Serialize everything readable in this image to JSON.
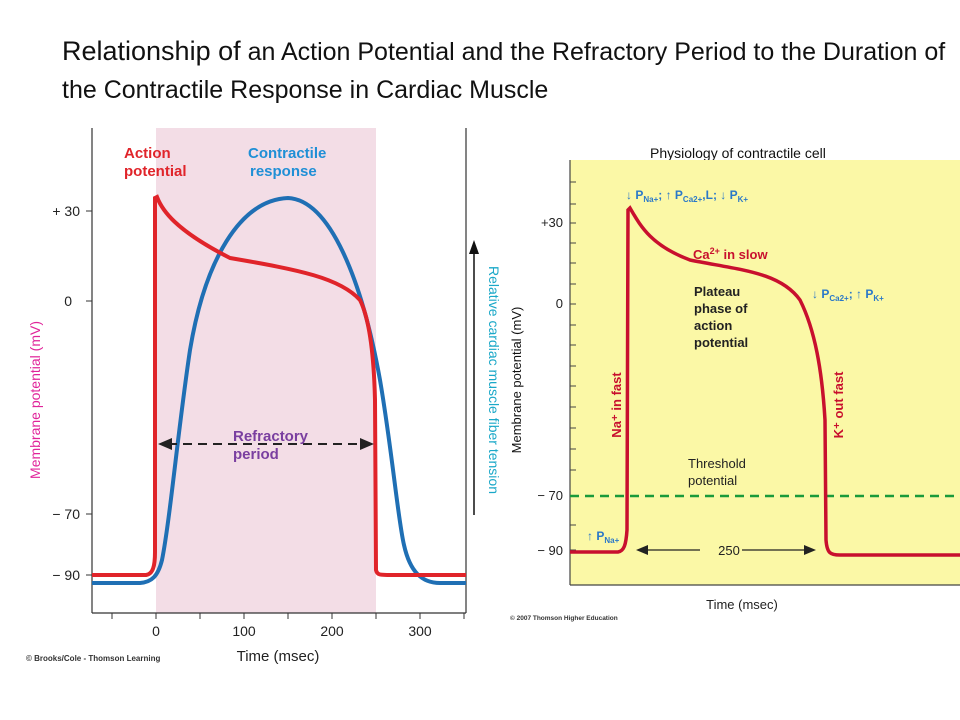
{
  "title": {
    "lead": "Relationship of",
    "rest": " an Action Potential and the Refractory Period to the Duration of the Contractile Response in Cardiac Muscle"
  },
  "left_figure": {
    "action_potential_label": [
      "Action",
      "potential"
    ],
    "contractile_label": [
      "Contractile",
      "response"
    ],
    "refractory_label": [
      "Refractory",
      "period"
    ],
    "y_axis_label": "Membrane potential (mV)",
    "right_axis_label": "Relative cardiac muscle fiber tension",
    "y_ticks": [
      "+ 30",
      "0",
      "− 70",
      "− 90"
    ],
    "x_ticks": [
      "0",
      "100",
      "200",
      "300"
    ],
    "x_axis_label": "Time (msec)",
    "credit": "© Brooks/Cole - Thomson Learning",
    "colors": {
      "action": "#e0242a",
      "contractile": "#1f6fb4",
      "shading": "#f3dde6",
      "labels_red": "#e0242a",
      "labels_blue": "#1f8fd6",
      "refractory": "#7a3fa0",
      "axis_pink": "#e0249a",
      "axis_cyan": "#1aa8c8"
    }
  },
  "right_figure": {
    "heading": "Physiology of contractile cell",
    "top_note": "↓ P",
    "na_sub": "Na+",
    "ca_p": "; ↑ P",
    "ca_sub": "Ca2+",
    "l_part": ",L; ↓ P",
    "k_sub": "K+",
    "ca_slow": "Ca",
    "ca_slow_sup": "2+",
    "ca_slow_rest": " in slow",
    "plateau": [
      "Plateau",
      "phase of",
      "action",
      "potential"
    ],
    "right_note": "↓ P",
    "right_note_ca": "Ca2+",
    "right_note_mid": "; ↑ P",
    "right_note_k": "K+",
    "na_fast": "Na⁺ in fast",
    "k_fast": "K⁺ out fast",
    "threshold": [
      "Threshold",
      "potential"
    ],
    "pna_note": "↑ P",
    "pna_sub": "Na+",
    "duration": "250",
    "y_axis_label": "Membrane potential (mV)",
    "y_ticks": [
      "+30",
      "0",
      "− 70",
      "− 90"
    ],
    "x_axis_label": "Time (msec)",
    "credit": "© 2007 Thomson Higher Education",
    "colors": {
      "background": "#fbf8a6",
      "trace": "#c8102e",
      "threshold": "#1a9a3a",
      "blue_text": "#2a78c8"
    }
  }
}
